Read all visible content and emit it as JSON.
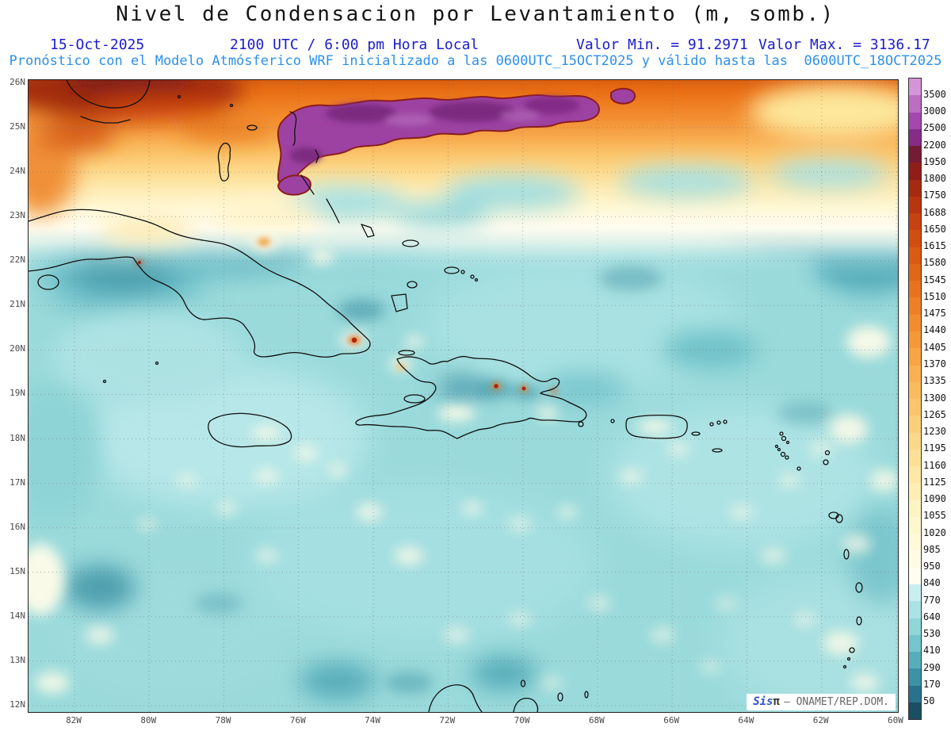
{
  "title": "Nivel de Condensacion por Levantamiento (m, somb.)",
  "header": {
    "date": "15-Oct-2025",
    "time": "2100 UTC / 6:00 pm Hora Local",
    "min_label": "Valor Min. = 91.2971",
    "max_label": "Valor Max. = 3136.17",
    "forecast": "Pronóstico con el Modelo Atmósferico WRF inicializado a las 0600UTC_15OCT2025 y válido hasta las  0600UTC_18OCT2025"
  },
  "watermark": {
    "brand_prefix": "Sis",
    "brand_symbol": "π",
    "org": "– ONAMET/REP.DOM."
  },
  "axes": {
    "lat_labels": [
      "26N",
      "25N",
      "24N",
      "23N",
      "22N",
      "21N",
      "20N",
      "19N",
      "18N",
      "17N",
      "16N",
      "15N",
      "14N",
      "13N",
      "12N"
    ],
    "lon_labels": [
      "82W",
      "80W",
      "78W",
      "76W",
      "74W",
      "72W",
      "70W",
      "68W",
      "66W",
      "64W",
      "62W",
      "60W"
    ]
  },
  "colorbar": {
    "labels": [
      "3500",
      "3000",
      "2500",
      "2200",
      "1950",
      "1800",
      "1750",
      "1688",
      "1650",
      "1615",
      "1580",
      "1545",
      "1510",
      "1475",
      "1440",
      "1405",
      "1370",
      "1335",
      "1300",
      "1265",
      "1230",
      "1195",
      "1160",
      "1125",
      "1090",
      "1055",
      "1020",
      "985",
      "950",
      "840",
      "770",
      "640",
      "530",
      "410",
      "290",
      "170",
      "50"
    ],
    "colors": [
      "#d395d8",
      "#bc6ec3",
      "#a348ac",
      "#862c87",
      "#731c33",
      "#8f1e1a",
      "#a62a10",
      "#b83510",
      "#c64211",
      "#d14e12",
      "#da5a14",
      "#e16618",
      "#e8731e",
      "#ed8026",
      "#f18d30",
      "#f4993a",
      "#f7a545",
      "#f9b051",
      "#fabb5f",
      "#fcc56d",
      "#fccf7b",
      "#fdd889",
      "#fde097",
      "#fee8a6",
      "#feeeb4",
      "#fef3c2",
      "#fff7cf",
      "#fff9da",
      "#fffbe4",
      "#fffdf0",
      "#c9eef0",
      "#abe2e4",
      "#8fd6d9",
      "#72c6cc",
      "#55afbb",
      "#3b93a6",
      "#27728c",
      "#1b4d63"
    ]
  },
  "palette": {
    "title_color": "#141414",
    "header_blue": "#1c1ccd",
    "forecast_blue": "#2e90e8",
    "axis_label": "#4a4a4a",
    "ocean_base": "#9adadb",
    "coastline": "#101010",
    "high_lcl_purple": "#9d42a2",
    "high_lcl_outline": "#8c1c1c"
  },
  "chart_data": {
    "type": "heatmap",
    "title": "Nivel de Condensacion por Levantamiento (m, somb.)",
    "units": "m",
    "value_min": 91.2971,
    "value_max": 3136.17,
    "lat_range_deg_n": [
      12,
      26
    ],
    "lon_range_deg_w": [
      83.2,
      59.8
    ],
    "contour_levels_ascending": [
      50,
      170,
      290,
      410,
      530,
      640,
      770,
      840,
      950,
      985,
      1020,
      1055,
      1090,
      1125,
      1160,
      1195,
      1230,
      1265,
      1300,
      1335,
      1370,
      1405,
      1440,
      1475,
      1510,
      1545,
      1580,
      1615,
      1650,
      1688,
      1750,
      1800,
      1950,
      2200,
      2500,
      3000,
      3500
    ],
    "palette_ref": "colorbar.colors (listed high-to-low, top of bar = highest values)",
    "legend_position": "right",
    "grid": "dotted, 1 deg latitude / 2 deg longitude",
    "qualitative_features": [
      "High LCL band (orange to purple, 1300-3500 m) north of ~23.5N, deepest dark red/purple near 24-26N between 76W and 66W",
      "Purple maxima (2200-3500 m) in elongated band ~24-25.5N, 76W-67W",
      "Most of Caribbean sea area 770-950 m (teal) with scattered pale patches 840-1100 m",
      "Darker teal pockets (170-530 m) over Cuba vicinity, Hispaniola interior, and northeast corner",
      "Small intense orange/red spots on eastern Cuba and central Hispaniola"
    ]
  }
}
